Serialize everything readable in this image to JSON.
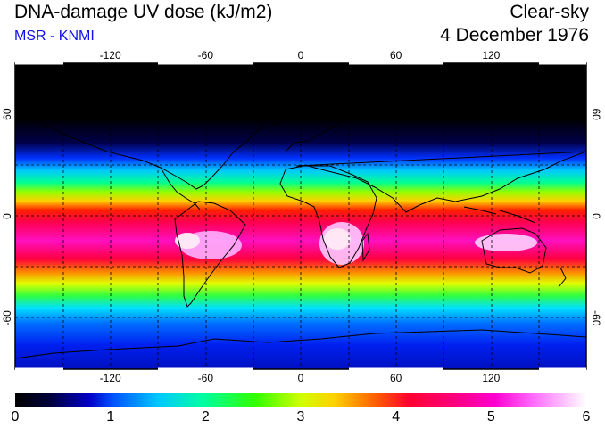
{
  "header": {
    "title": "DNA-damage UV dose (kJ/m2)",
    "source": "MSR - KNMI",
    "sky_condition": "Clear-sky",
    "date": "4 December 1976"
  },
  "map": {
    "lon_ticks": [
      "-120",
      "-60",
      "0",
      "60",
      "120"
    ],
    "lat_ticks": [
      "60",
      "0",
      "-60"
    ],
    "lon_values": [
      -120,
      -60,
      0,
      60,
      120
    ],
    "lat_values": [
      60,
      0,
      -60
    ],
    "lon_range": [
      -180,
      180
    ],
    "lat_range": [
      90,
      -90
    ]
  },
  "colorbar": {
    "labels": [
      "0",
      "1",
      "2",
      "3",
      "4",
      "5",
      "6"
    ],
    "min": 0,
    "max": 6,
    "unit": "kJ/m2"
  }
}
